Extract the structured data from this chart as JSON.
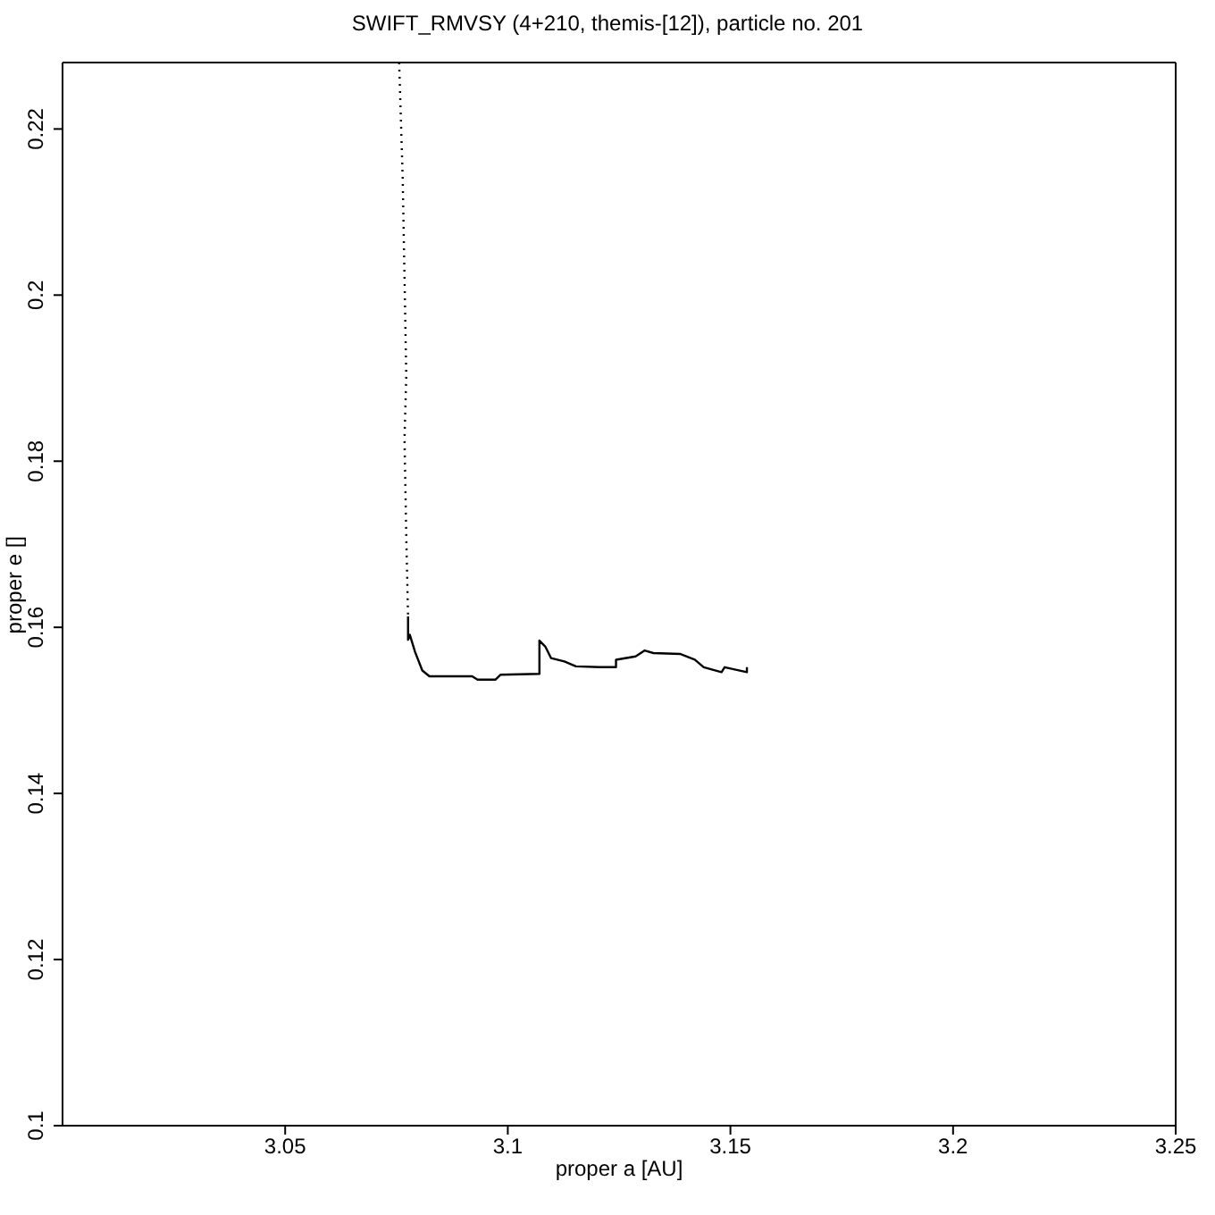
{
  "chart_data": {
    "type": "line",
    "title": "SWIFT_RMVSY (4+210, themis-[12]), particle no. 201",
    "xlabel": "proper a [AU]",
    "ylabel": "proper e []",
    "xlim": [
      3.0,
      3.25
    ],
    "xticks": [
      3.05,
      3.1,
      3.15,
      3.2,
      3.25
    ],
    "ylim": [
      0.1,
      0.228
    ],
    "yticks": [
      0.1,
      0.12,
      0.14,
      0.16,
      0.18,
      0.2,
      0.22
    ],
    "marker": "none",
    "series": [
      {
        "color": "#000000",
        "line_style": "dotted",
        "x": [
          3.0756,
          3.0764,
          3.0772,
          3.0768,
          3.0772,
          3.0776
        ],
        "values": [
          0.228,
          0.214,
          0.1903,
          0.1828,
          0.171,
          0.1613
        ]
      },
      {
        "color": "#000000",
        "line_style": "solid",
        "x": [
          3.0776,
          3.0776,
          3.078,
          3.0792,
          3.0808,
          3.0824,
          3.092,
          3.0932,
          3.0972,
          3.0984,
          3.1071,
          3.1071,
          3.1084,
          3.1097,
          3.1127,
          3.1153,
          3.1207,
          3.1243,
          3.1243,
          3.1287,
          3.1307,
          3.1327,
          3.1387,
          3.142,
          3.144,
          3.148,
          3.1487,
          3.1537,
          3.1537
        ],
        "values": [
          0.1613,
          0.1585,
          0.1591,
          0.157,
          0.1548,
          0.1541,
          0.1541,
          0.1537,
          0.1537,
          0.1543,
          0.1544,
          0.1584,
          0.1577,
          0.1563,
          0.1559,
          0.1553,
          0.1552,
          0.1552,
          0.1561,
          0.1565,
          0.1572,
          0.1569,
          0.1568,
          0.1561,
          0.1552,
          0.1546,
          0.1552,
          0.1546,
          0.1552
        ]
      }
    ]
  }
}
